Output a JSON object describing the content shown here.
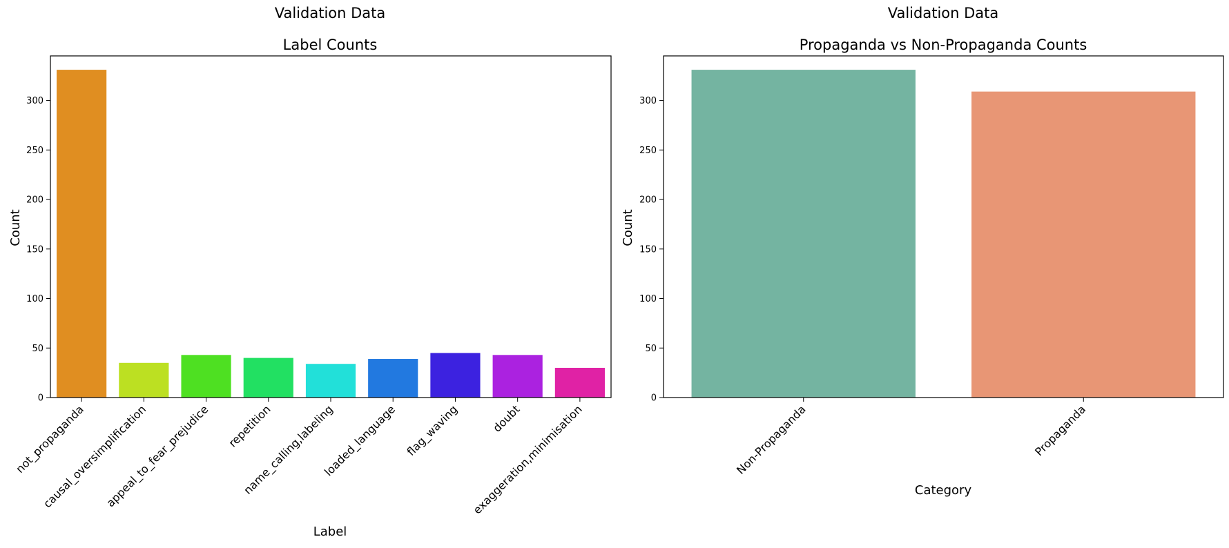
{
  "chart_data": [
    {
      "type": "bar",
      "suptitle": "Validation Data",
      "title": "Label Counts",
      "xlabel": "Label",
      "ylabel": "Count",
      "ylim": [
        0,
        345
      ],
      "yticks": [
        0,
        50,
        100,
        150,
        200,
        250,
        300
      ],
      "categories": [
        "not_propaganda",
        "causal_oversimplification",
        "appeal_to_fear_prejudice",
        "repetition",
        "name_calling,labeling",
        "loaded_language",
        "flag_waving",
        "doubt",
        "exaggeration,minimisation"
      ],
      "values": [
        331,
        35,
        43,
        40,
        34,
        39,
        45,
        43,
        30
      ],
      "colors": [
        "#e08e21",
        "#bce022",
        "#4ee022",
        "#22e062",
        "#22e0d9",
        "#2279e0",
        "#3c22e0",
        "#ab22e0",
        "#e022a5"
      ],
      "grid": false
    },
    {
      "type": "bar",
      "suptitle": "Validation Data",
      "title": "Propaganda vs Non-Propaganda Counts",
      "xlabel": "Category",
      "ylabel": "Count",
      "ylim": [
        0,
        345
      ],
      "yticks": [
        0,
        50,
        100,
        150,
        200,
        250,
        300
      ],
      "categories": [
        "Non-Propaganda",
        "Propaganda"
      ],
      "values": [
        331,
        309
      ],
      "colors": [
        "#74b4a1",
        "#e89675"
      ],
      "grid": false
    }
  ]
}
